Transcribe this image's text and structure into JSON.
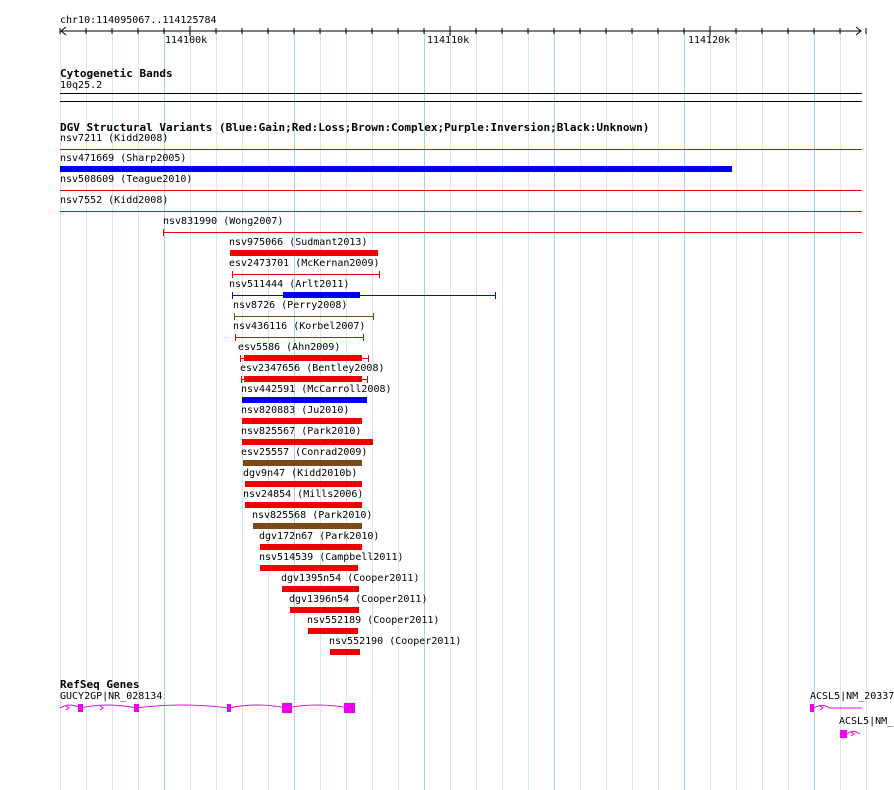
{
  "ruler": {
    "location": "chr10:114095067..114125784",
    "labels": [
      "114100k",
      "114110k",
      "114120k"
    ]
  },
  "cytoband": {
    "title": "Cytogenetic Bands",
    "band": "10q25.2"
  },
  "dgv": {
    "title": "DGV Structural Variants (Blue:Gain;Red:Loss;Brown:Complex;Purple:Inversion;Black:Unknown)",
    "colors": {
      "gain": "#0000ee",
      "loss": "#ee0000",
      "complex": "#7a4a1a",
      "unknown": "#000000"
    },
    "variants": [
      {
        "label": "nsv7211 (Kidd2008)",
        "type": "loss",
        "style": "thin"
      },
      {
        "label": "nsv471669 (Sharp2005)",
        "type": "gain",
        "style": "bar"
      },
      {
        "label": "nsv508609 (Teague2010)",
        "type": "loss",
        "style": "thin"
      },
      {
        "label": "nsv7552 (Kidd2008)",
        "type": "loss",
        "style": "thin"
      },
      {
        "label": "nsv831990 (Wong2007)",
        "type": "loss",
        "style": "thin"
      },
      {
        "label": "nsv975066 (Sudmant2013)",
        "type": "loss",
        "style": "bar"
      },
      {
        "label": "esv2473701 (McKernan2009)",
        "type": "loss",
        "style": "thin"
      },
      {
        "label": "nsv511444 (Arlt2011)",
        "type": "gain",
        "style": "mixed"
      },
      {
        "label": "nsv8726 (Perry2008)",
        "type": "complex",
        "style": "thin"
      },
      {
        "label": "nsv436116 (Korbel2007)",
        "type": "loss",
        "style": "thin"
      },
      {
        "label": "esv5586 (Ahn2009)",
        "type": "loss",
        "style": "mixed"
      },
      {
        "label": "esv2347656 (Bentley2008)",
        "type": "loss",
        "style": "mixed"
      },
      {
        "label": "nsv442591 (McCarroll2008)",
        "type": "gain",
        "style": "bar"
      },
      {
        "label": "nsv820883 (Ju2010)",
        "type": "loss",
        "style": "bar"
      },
      {
        "label": "nsv825567 (Park2010)",
        "type": "loss",
        "style": "bar"
      },
      {
        "label": "esv25557 (Conrad2009)",
        "type": "complex",
        "style": "bar"
      },
      {
        "label": "dgv9n47 (Kidd2010b)",
        "type": "loss",
        "style": "bar"
      },
      {
        "label": "nsv24854 (Mills2006)",
        "type": "loss",
        "style": "bar"
      },
      {
        "label": "nsv825568 (Park2010)",
        "type": "complex",
        "style": "bar"
      },
      {
        "label": "dgv172n67 (Park2010)",
        "type": "loss",
        "style": "bar"
      },
      {
        "label": "nsv514539 (Campbell2011)",
        "type": "loss",
        "style": "bar"
      },
      {
        "label": "dgv1395n54 (Cooper2011)",
        "type": "loss",
        "style": "bar"
      },
      {
        "label": "dgv1396n54 (Cooper2011)",
        "type": "loss",
        "style": "bar"
      },
      {
        "label": "nsv552189 (Cooper2011)",
        "type": "loss",
        "style": "bar"
      },
      {
        "label": "nsv552190 (Cooper2011)",
        "type": "loss",
        "style": "bar"
      }
    ]
  },
  "refseq": {
    "title": "RefSeq Genes",
    "gene_color": "#ee00ee",
    "genes": [
      {
        "label": "GUCY2GP|NR_028134"
      },
      {
        "label": "ACSL5|NM_20337"
      },
      {
        "label": "ACSL5|NM_"
      }
    ]
  }
}
